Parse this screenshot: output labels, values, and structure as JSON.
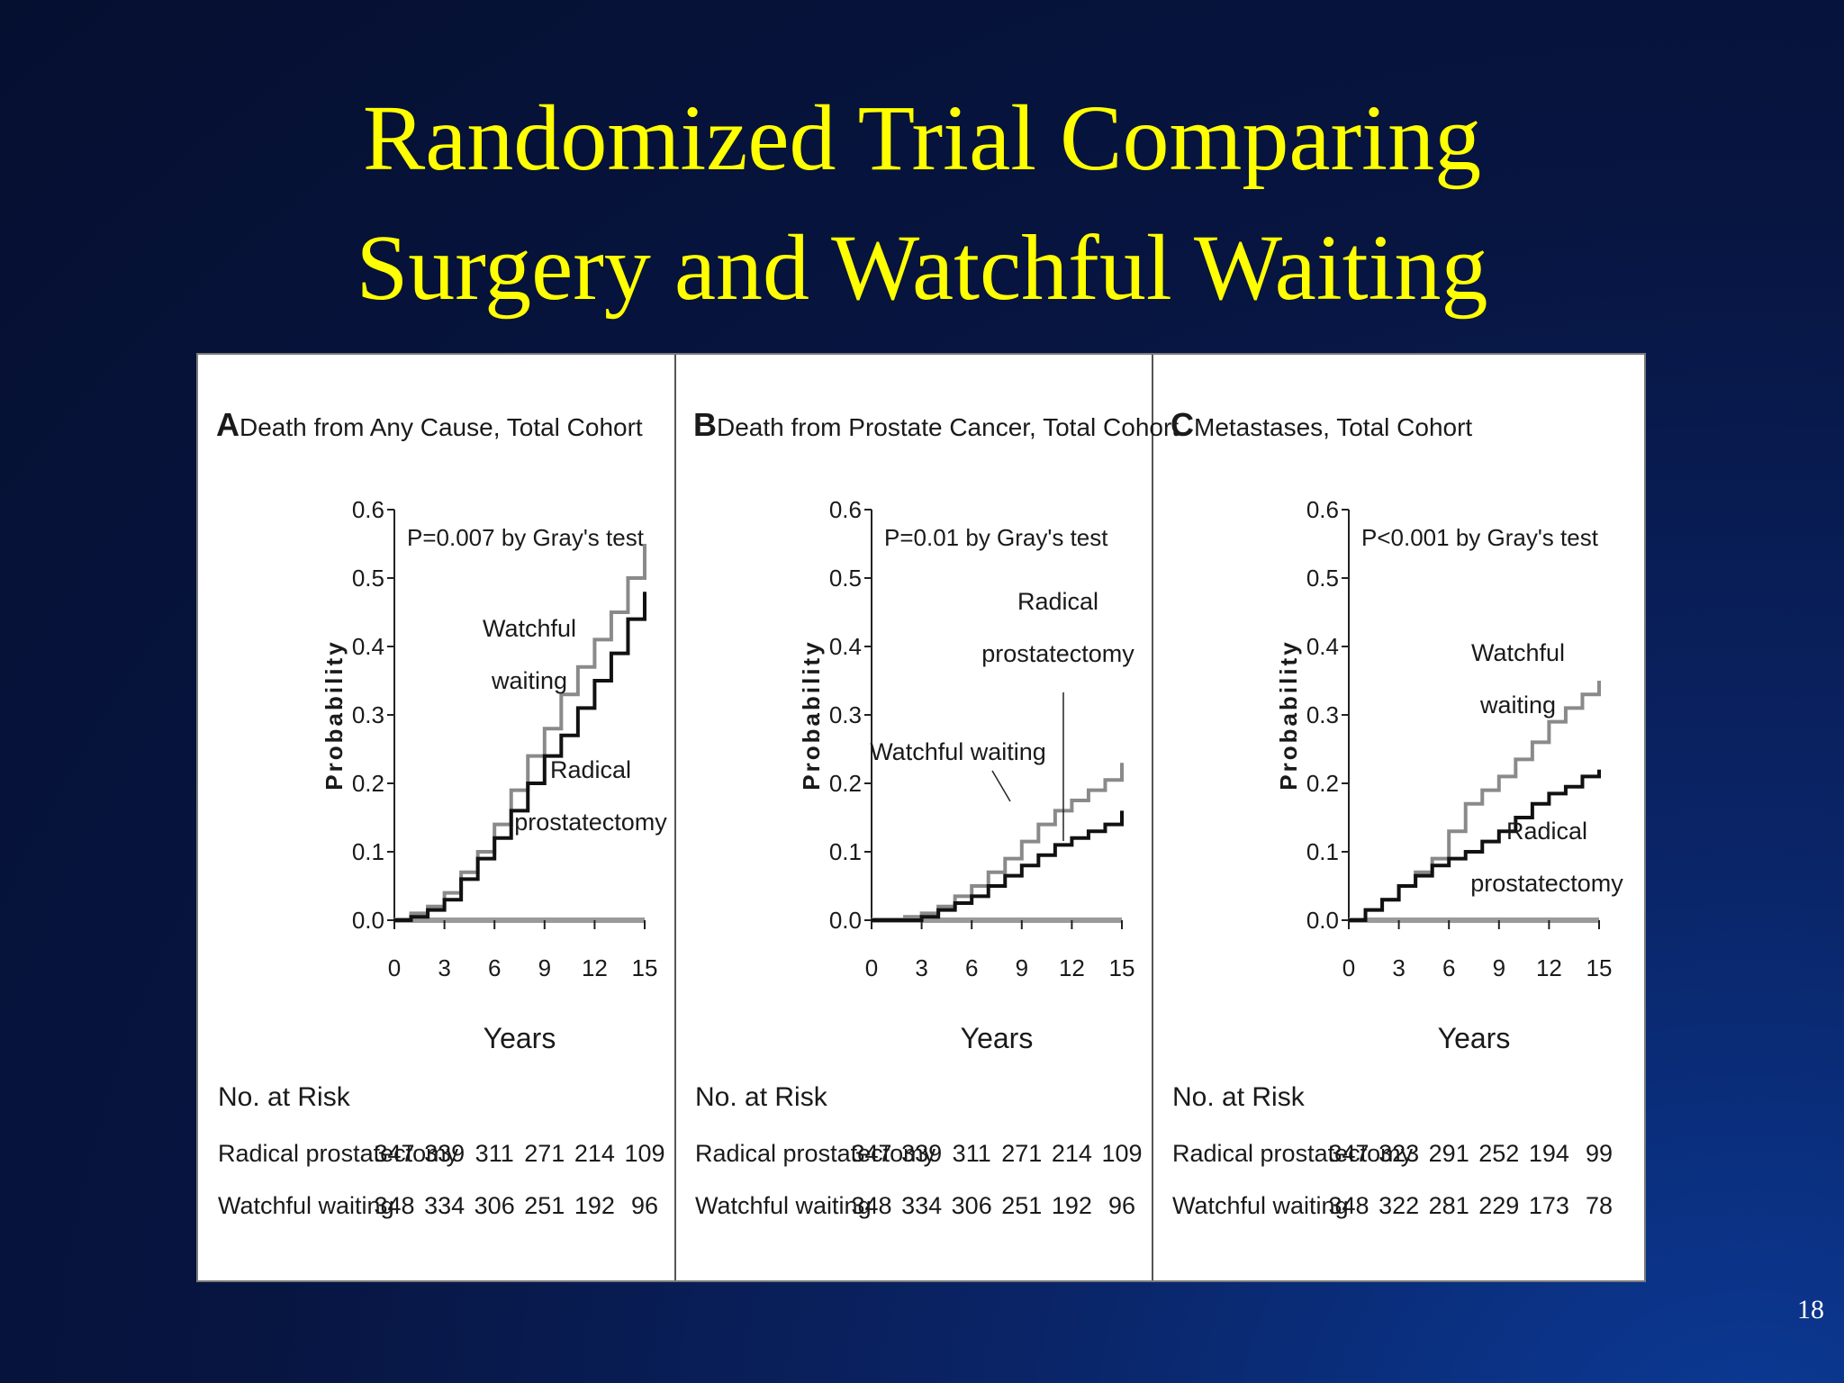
{
  "slide": {
    "title_line1": "Randomized Trial Comparing",
    "title_line2": "Surgery and Watchful Waiting",
    "page_number": "18"
  },
  "colors": {
    "title": "#ffff00",
    "watchful_waiting": "#8a8a8a",
    "radical_prostatectomy": "#111111"
  },
  "chart_data": [
    {
      "type": "line",
      "panel_letter": "A",
      "title": "Death from Any Cause, Total Cohort",
      "annotation": "P=0.007 by Gray's test",
      "xlabel": "Years",
      "ylabel": "Probability",
      "xlim": [
        0,
        15
      ],
      "ylim": [
        0,
        0.6
      ],
      "xticks": [
        "0",
        "3",
        "6",
        "9",
        "12",
        "15"
      ],
      "yticks": [
        "0.0",
        "0.1",
        "0.2",
        "0.3",
        "0.4",
        "0.5",
        "0.6"
      ],
      "series": [
        {
          "name": "Watchful waiting",
          "label_lines": [
            "Watchful",
            "waiting"
          ],
          "x": [
            0,
            1,
            2,
            3,
            4,
            5,
            6,
            7,
            8,
            9,
            10,
            11,
            12,
            13,
            14,
            15
          ],
          "y": [
            0,
            0.01,
            0.02,
            0.04,
            0.07,
            0.1,
            0.14,
            0.19,
            0.24,
            0.28,
            0.33,
            0.37,
            0.41,
            0.45,
            0.5,
            0.55
          ]
        },
        {
          "name": "Radical prostatectomy",
          "label_lines": [
            "Radical",
            "prostatectomy"
          ],
          "x": [
            0,
            1,
            2,
            3,
            4,
            5,
            6,
            7,
            8,
            9,
            10,
            11,
            12,
            13,
            14,
            15
          ],
          "y": [
            0,
            0.005,
            0.015,
            0.03,
            0.06,
            0.09,
            0.12,
            0.16,
            0.2,
            0.24,
            0.27,
            0.31,
            0.35,
            0.39,
            0.44,
            0.48
          ]
        }
      ],
      "risk_table": {
        "header": "No. at Risk",
        "rows": [
          {
            "label": "Radical prostatectomy",
            "values": [
              "347",
              "339",
              "311",
              "271",
              "214",
              "109"
            ]
          },
          {
            "label": "Watchful waiting",
            "values": [
              "348",
              "334",
              "306",
              "251",
              "192",
              "96"
            ]
          }
        ]
      }
    },
    {
      "type": "line",
      "panel_letter": "B",
      "title": "Death from Prostate Cancer, Total Cohort",
      "annotation": "P=0.01 by Gray's test",
      "xlabel": "Years",
      "ylabel": "Probability",
      "xlim": [
        0,
        15
      ],
      "ylim": [
        0,
        0.6
      ],
      "xticks": [
        "0",
        "3",
        "6",
        "9",
        "12",
        "15"
      ],
      "yticks": [
        "0.0",
        "0.1",
        "0.2",
        "0.3",
        "0.4",
        "0.5",
        "0.6"
      ],
      "series": [
        {
          "name": "Watchful waiting",
          "label_lines": [
            "Watchful waiting"
          ],
          "x": [
            0,
            1,
            2,
            3,
            4,
            5,
            6,
            7,
            8,
            9,
            10,
            11,
            12,
            13,
            14,
            15
          ],
          "y": [
            0,
            0,
            0.005,
            0.01,
            0.02,
            0.035,
            0.05,
            0.07,
            0.09,
            0.115,
            0.14,
            0.16,
            0.175,
            0.19,
            0.205,
            0.23
          ]
        },
        {
          "name": "Radical prostatectomy",
          "label_lines": [
            "Radical",
            "prostatectomy"
          ],
          "x": [
            0,
            1,
            2,
            3,
            4,
            5,
            6,
            7,
            8,
            9,
            10,
            11,
            12,
            13,
            14,
            15
          ],
          "y": [
            0,
            0,
            0,
            0.005,
            0.015,
            0.025,
            0.035,
            0.05,
            0.065,
            0.08,
            0.095,
            0.11,
            0.12,
            0.13,
            0.14,
            0.16
          ]
        }
      ],
      "risk_table": {
        "header": "No. at Risk",
        "rows": [
          {
            "label": "Radical prostatectomy",
            "values": [
              "347",
              "339",
              "311",
              "271",
              "214",
              "109"
            ]
          },
          {
            "label": "Watchful waiting",
            "values": [
              "348",
              "334",
              "306",
              "251",
              "192",
              "96"
            ]
          }
        ]
      }
    },
    {
      "type": "line",
      "panel_letter": "C",
      "title": "Metastases, Total Cohort",
      "annotation": "P<0.001 by Gray's test",
      "xlabel": "Years",
      "ylabel": "Probability",
      "xlim": [
        0,
        15
      ],
      "ylim": [
        0,
        0.6
      ],
      "xticks": [
        "0",
        "3",
        "6",
        "9",
        "12",
        "15"
      ],
      "yticks": [
        "0.0",
        "0.1",
        "0.2",
        "0.3",
        "0.4",
        "0.5",
        "0.6"
      ],
      "series": [
        {
          "name": "Watchful waiting",
          "label_lines": [
            "Watchful",
            "waiting"
          ],
          "x": [
            0,
            1,
            2,
            3,
            4,
            5,
            6,
            7,
            8,
            9,
            10,
            11,
            12,
            13,
            14,
            15
          ],
          "y": [
            0,
            0.015,
            0.03,
            0.05,
            0.07,
            0.09,
            0.13,
            0.17,
            0.19,
            0.21,
            0.235,
            0.26,
            0.29,
            0.31,
            0.33,
            0.35
          ]
        },
        {
          "name": "Radical prostatectomy",
          "label_lines": [
            "Radical",
            "prostatectomy"
          ],
          "x": [
            0,
            1,
            2,
            3,
            4,
            5,
            6,
            7,
            8,
            9,
            10,
            11,
            12,
            13,
            14,
            15
          ],
          "y": [
            0,
            0.015,
            0.03,
            0.05,
            0.065,
            0.08,
            0.09,
            0.1,
            0.115,
            0.13,
            0.15,
            0.17,
            0.185,
            0.195,
            0.21,
            0.22
          ]
        }
      ],
      "risk_table": {
        "header": "No. at Risk",
        "rows": [
          {
            "label": "Radical prostatectomy",
            "values": [
              "347",
              "323",
              "291",
              "252",
              "194",
              "99"
            ]
          },
          {
            "label": "Watchful waiting",
            "values": [
              "348",
              "322",
              "281",
              "229",
              "173",
              "78"
            ]
          }
        ]
      }
    }
  ]
}
